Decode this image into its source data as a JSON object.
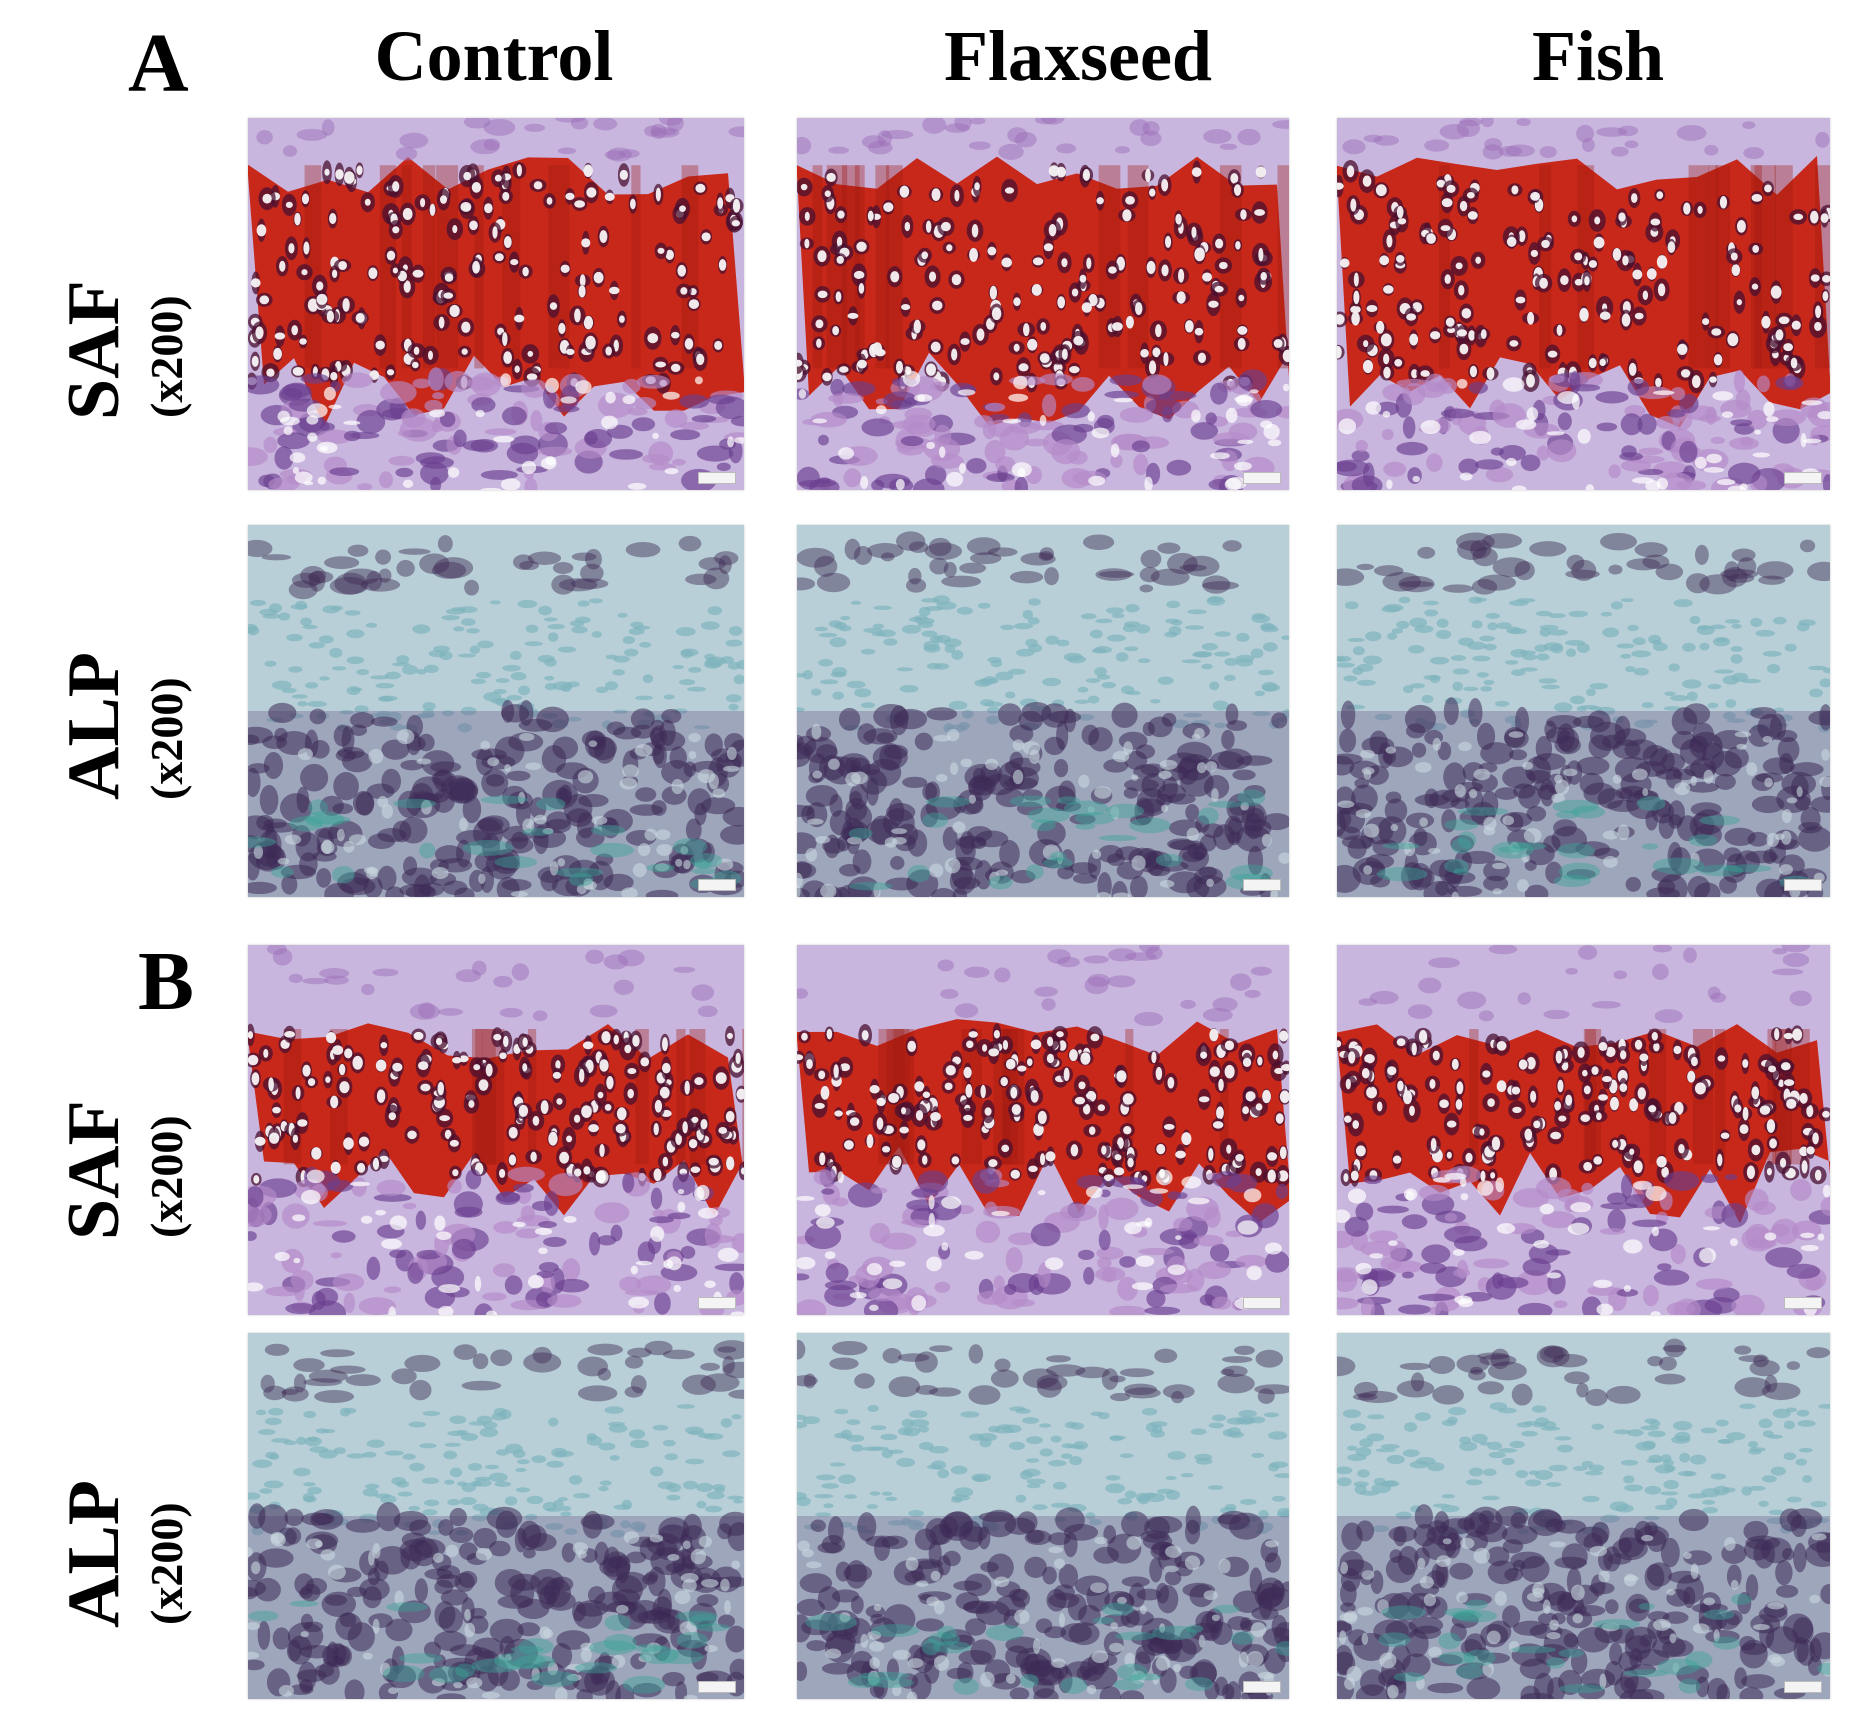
{
  "panels": [
    {
      "letter": "A"
    },
    {
      "letter": "B"
    }
  ],
  "columns": [
    "Control",
    "Flaxseed",
    "Fish"
  ],
  "rows": [
    {
      "panel": "A",
      "stain": "SAF",
      "magnification": "(x200)",
      "type": "saf"
    },
    {
      "panel": "A",
      "stain": "ALP",
      "magnification": "(x200)",
      "type": "alp"
    },
    {
      "panel": "B",
      "stain": "SAF",
      "magnification": "(x200)",
      "type": "saf"
    },
    {
      "panel": "B",
      "stain": "ALP",
      "magnification": "(x200)",
      "type": "alp"
    }
  ],
  "colors": {
    "saf_red": "#c8281a",
    "saf_dark_red": "#9e1a12",
    "saf_purple": "#b48ac8",
    "saf_lavender": "#c9b6de",
    "alp_bg": "#b9cfd8",
    "alp_teal": "#7fb3bd",
    "alp_dark": "#3d2a55",
    "alp_green": "#3aa596"
  }
}
